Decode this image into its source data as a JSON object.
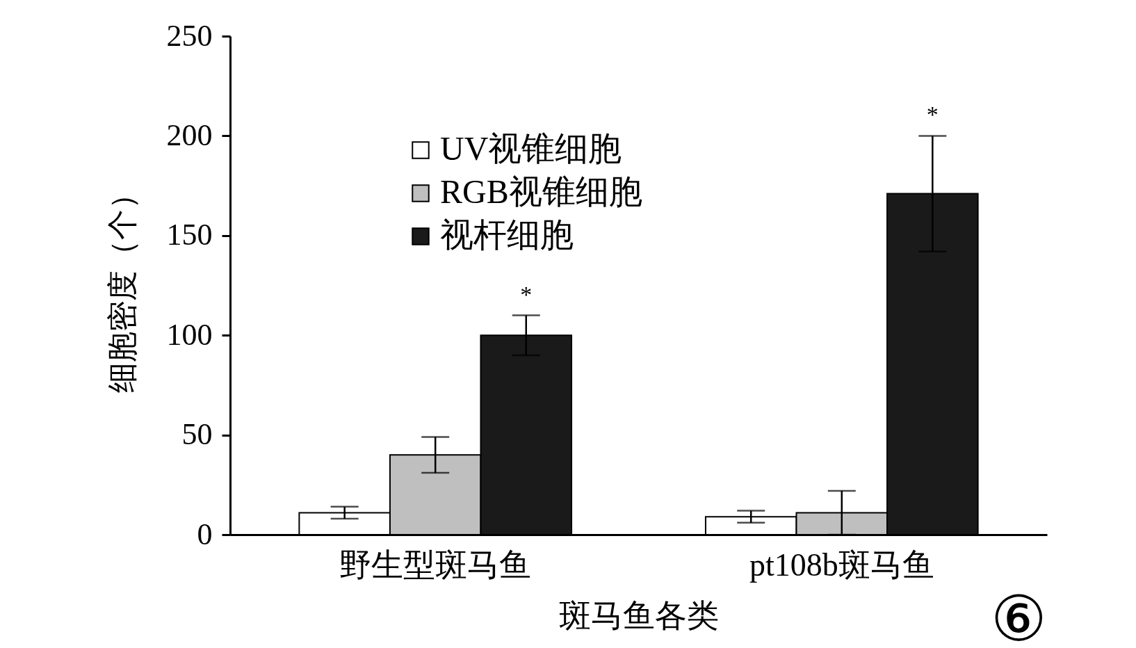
{
  "chart_data": {
    "type": "bar",
    "xlabel": "斑马鱼各类",
    "ylabel": "细胞密度（个）",
    "categories": [
      "野生型斑马鱼",
      "pt108b斑马鱼"
    ],
    "series": [
      {
        "name": "UV视锥细胞",
        "color": "#ffffff",
        "values": [
          11,
          9
        ],
        "errors": [
          3,
          3
        ]
      },
      {
        "name": "RGB视锥细胞",
        "color": "#bfbfbf",
        "values": [
          40,
          11
        ],
        "errors": [
          9,
          11
        ]
      },
      {
        "name": "视杆细胞",
        "color": "#1a1a1a",
        "values": [
          100,
          171
        ],
        "errors": [
          10,
          29
        ]
      }
    ],
    "ylim": [
      0,
      250
    ],
    "yticks": [
      0,
      50,
      100,
      150,
      200,
      250
    ],
    "grid": false,
    "legend": "top left",
    "annotations": [
      "*",
      "*",
      "⑥"
    ]
  }
}
